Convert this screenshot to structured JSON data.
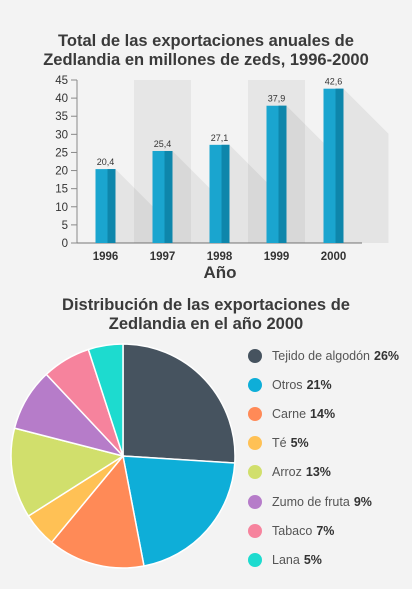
{
  "chart_data": [
    {
      "type": "bar",
      "title": "Total de las exportaciones anuales de Zedlandia en millones de zeds, 1996-2000",
      "title_lines": [
        "Total de las exportaciones anuales de",
        "Zedlandia en millones de zeds, 1996-2000"
      ],
      "categories": [
        "1996",
        "1997",
        "1998",
        "1999",
        "2000"
      ],
      "values": [
        20.4,
        25.4,
        27.1,
        37.9,
        42.6
      ],
      "value_labels": [
        "20,4",
        "25,4",
        "27,1",
        "37,9",
        "42,6"
      ],
      "xlabel": "Año",
      "ylabel": "",
      "ylim": [
        0,
        45
      ],
      "yticks": [
        0,
        5,
        10,
        15,
        20,
        25,
        30,
        35,
        40,
        45
      ],
      "bar_color": "#1aa5cf",
      "bar_dark_color": "#0e86ab"
    },
    {
      "type": "pie",
      "title": "Distribución de las exportaciones de Zedlandia en el año 2000",
      "title_lines": [
        "Distribución de las exportaciones de",
        "Zedlandia en el año 2000"
      ],
      "legend_position": "right",
      "slices": [
        {
          "label": "Tejido de algodón",
          "pct_label": "26%",
          "value": 26,
          "color": "#46535f"
        },
        {
          "label": "Otros",
          "pct_label": "21%",
          "value": 21,
          "color": "#0eaed8"
        },
        {
          "label": "Carne",
          "pct_label": "14%",
          "value": 14,
          "color": "#ff8a57"
        },
        {
          "label": "Té",
          "pct_label": "5%",
          "value": 5,
          "color": "#ffc155"
        },
        {
          "label": "Arroz",
          "pct_label": "13%",
          "value": 13,
          "color": "#d1df6c"
        },
        {
          "label": "Zumo de fruta",
          "pct_label": "9%",
          "value": 9,
          "color": "#b67cc9"
        },
        {
          "label": "Tabaco",
          "pct_label": "7%",
          "value": 7,
          "color": "#f6839d"
        },
        {
          "label": "Lana",
          "pct_label": "5%",
          "value": 5,
          "color": "#1ddbcf"
        }
      ]
    }
  ]
}
